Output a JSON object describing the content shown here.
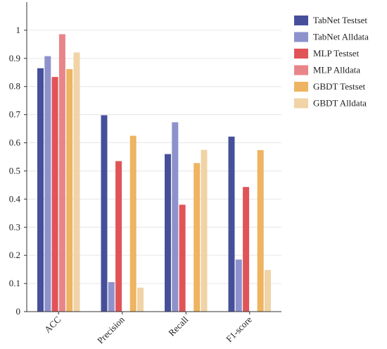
{
  "chart_data": {
    "type": "bar",
    "categories": [
      "ACC",
      "Precision",
      "Recall",
      "F1-score"
    ],
    "series": [
      {
        "name": "TabNet Testset",
        "color": "#46509a",
        "values": [
          0.865,
          0.698,
          0.56,
          0.622
        ]
      },
      {
        "name": "TabNet Alldata",
        "color": "#8d92cc",
        "values": [
          0.908,
          0.105,
          0.673,
          0.185
        ]
      },
      {
        "name": "MLP Testset",
        "color": "#e05458",
        "values": [
          0.834,
          0.535,
          0.38,
          0.443
        ]
      },
      {
        "name": "MLP Alldata",
        "color": "#e8858a",
        "values": [
          0.986,
          0.0,
          0.0,
          0.0
        ]
      },
      {
        "name": "GBDT Testset",
        "color": "#eeb461",
        "values": [
          0.862,
          0.625,
          0.528,
          0.574
        ]
      },
      {
        "name": "GBDT Alldata",
        "color": "#f0d3a6",
        "values": [
          0.921,
          0.085,
          0.575,
          0.148
        ]
      }
    ],
    "yticks": [
      "0",
      "0.1",
      "0.2",
      "0.3",
      "0.4",
      "0.5",
      "0.6",
      "0.7",
      "0.8",
      "0.9",
      "1"
    ],
    "ylim": [
      0,
      1.1
    ],
    "grid": true,
    "legend_position": "right"
  }
}
